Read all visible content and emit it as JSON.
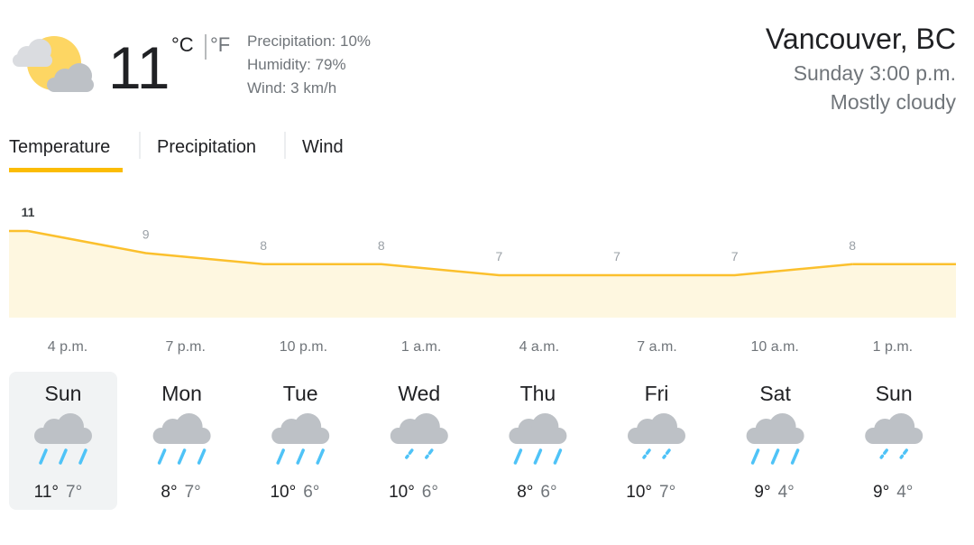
{
  "current": {
    "temperature": "11",
    "unit_c": "°C",
    "unit_f": "°F",
    "details": [
      "Precipitation: 10%",
      "Humidity: 79%",
      "Wind: 3 km/h"
    ]
  },
  "location": {
    "name": "Vancouver, BC",
    "time": "Sunday 3:00 p.m.",
    "condition": "Mostly cloudy"
  },
  "tabs": [
    "Temperature",
    "Precipitation",
    "Wind"
  ],
  "graph": {
    "values": [
      11,
      9,
      8,
      8,
      7,
      7,
      7,
      8
    ],
    "times": [
      "4 p.m.",
      "7 p.m.",
      "10 p.m.",
      "1 a.m.",
      "4 a.m.",
      "7 a.m.",
      "10 a.m.",
      "1 p.m."
    ]
  },
  "days": [
    {
      "name": "Sun",
      "high": "11°",
      "low": "7°"
    },
    {
      "name": "Mon",
      "high": "8°",
      "low": "7°"
    },
    {
      "name": "Tue",
      "high": "10°",
      "low": "6°"
    },
    {
      "name": "Wed",
      "high": "10°",
      "low": "6°"
    },
    {
      "name": "Thu",
      "high": "8°",
      "low": "6°"
    },
    {
      "name": "Fri",
      "high": "10°",
      "low": "7°"
    },
    {
      "name": "Sat",
      "high": "9°",
      "low": "4°"
    },
    {
      "name": "Sun",
      "high": "9°",
      "low": "4°"
    }
  ]
}
